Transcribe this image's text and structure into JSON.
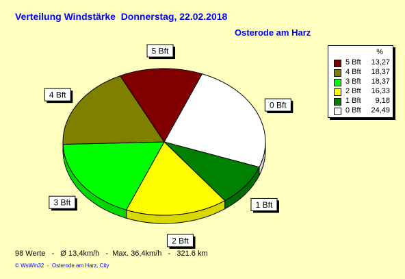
{
  "title": "Verteilung Windstärke  Donnerstag, 22.02.2018",
  "subtitle": "Osterode am Harz",
  "legend": {
    "header": "%"
  },
  "chart_data": {
    "type": "pie",
    "title": "Verteilung Windstärke  Donnerstag, 22.02.2018",
    "subtitle": "Osterode am Harz",
    "slices": [
      {
        "label": "0 Bft",
        "value": 24.49,
        "value_text": "24,49",
        "color": "#ffffff"
      },
      {
        "label": "1 Bft",
        "value": 9.18,
        "value_text": "9,18",
        "color": "#008000"
      },
      {
        "label": "2 Bft",
        "value": 16.33,
        "value_text": "16,33",
        "color": "#ffff00"
      },
      {
        "label": "3 Bft",
        "value": 18.37,
        "value_text": "18,37",
        "color": "#00ff00"
      },
      {
        "label": "4 Bft",
        "value": 18.37,
        "value_text": "18,37",
        "color": "#808000"
      },
      {
        "label": "5 Bft",
        "value": 13.27,
        "value_text": "13,27",
        "color": "#800000"
      }
    ],
    "legend_order": [
      "5 Bft",
      "4 Bft",
      "3 Bft",
      "2 Bft",
      "1 Bft",
      "0 Bft"
    ],
    "legend_position": "top-right"
  },
  "footer": {
    "stats": "98 Werte   -   Ø 13,4km/h   -  Max. 36,4km/h   -   321.6 km",
    "credit": "© WsWin32  -  Osterode am Harz, City"
  }
}
